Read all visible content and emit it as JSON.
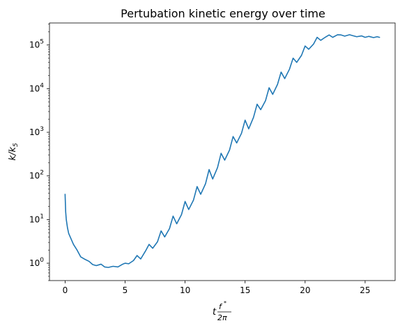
{
  "chart_data": {
    "type": "line",
    "title": "Pertubation kinetic energy over time",
    "xlabel": {
      "base": "t",
      "frac_num": "f",
      "frac_num_sup": "*",
      "frac_den": "2π"
    },
    "ylabel": {
      "base": "k/k",
      "sub": "5"
    },
    "xlim": [
      -1.3,
      27.5
    ],
    "ylim": [
      0.4,
      320000
    ],
    "yscale": "log",
    "grid": false,
    "x_ticks": [
      0,
      5,
      10,
      15,
      20,
      25
    ],
    "x_tick_labels": [
      "0",
      "5",
      "10",
      "15",
      "20",
      "25"
    ],
    "y_ticks": [
      {
        "value": 1,
        "base": "10",
        "exp": "0"
      },
      {
        "value": 10,
        "base": "10",
        "exp": "1"
      },
      {
        "value": 100,
        "base": "10",
        "exp": "2"
      },
      {
        "value": 1000,
        "base": "10",
        "exp": "3"
      },
      {
        "value": 10000,
        "base": "10",
        "exp": "4"
      },
      {
        "value": 100000,
        "base": "10",
        "exp": "5"
      }
    ],
    "series": [
      {
        "color": "#1f77b4",
        "x": [
          0.0,
          0.05,
          0.1,
          0.2,
          0.3,
          0.5,
          0.7,
          1.0,
          1.3,
          1.6,
          2.0,
          2.3,
          2.6,
          3.0,
          3.3,
          3.6,
          4.0,
          4.4,
          4.8,
          5.0,
          5.3,
          5.7,
          6.0,
          6.3,
          6.7,
          7.0,
          7.3,
          7.7,
          8.0,
          8.3,
          8.7,
          9.0,
          9.3,
          9.7,
          10.0,
          10.3,
          10.7,
          11.0,
          11.3,
          11.7,
          12.0,
          12.3,
          12.7,
          13.0,
          13.3,
          13.7,
          14.0,
          14.3,
          14.7,
          15.0,
          15.3,
          15.7,
          16.0,
          16.3,
          16.7,
          17.0,
          17.3,
          17.7,
          18.0,
          18.3,
          18.7,
          19.0,
          19.3,
          19.7,
          20.0,
          20.3,
          20.7,
          21.0,
          21.3,
          21.7,
          22.0,
          22.3,
          22.7,
          23.0,
          23.3,
          23.7,
          24.0,
          24.3,
          24.7,
          25.0,
          25.3,
          25.7,
          26.0,
          26.2
        ],
        "y": [
          38,
          15,
          10,
          6.5,
          4.8,
          3.6,
          2.7,
          2.0,
          1.4,
          1.25,
          1.1,
          0.93,
          0.88,
          0.95,
          0.82,
          0.8,
          0.85,
          0.82,
          0.95,
          1.0,
          0.97,
          1.15,
          1.5,
          1.25,
          1.9,
          2.7,
          2.2,
          3.1,
          5.5,
          4.0,
          6.2,
          12,
          8.0,
          13,
          26,
          17,
          28,
          57,
          38,
          66,
          140,
          85,
          155,
          330,
          230,
          390,
          800,
          570,
          950,
          1900,
          1200,
          2200,
          4400,
          3300,
          5300,
          10500,
          7400,
          12500,
          24000,
          17000,
          28000,
          50000,
          40000,
          58000,
          95000,
          80000,
          105000,
          150000,
          128000,
          152000,
          170000,
          150000,
          172000,
          170000,
          160000,
          172000,
          163000,
          155000,
          162000,
          150000,
          158000,
          148000,
          155000,
          150000
        ]
      }
    ]
  }
}
